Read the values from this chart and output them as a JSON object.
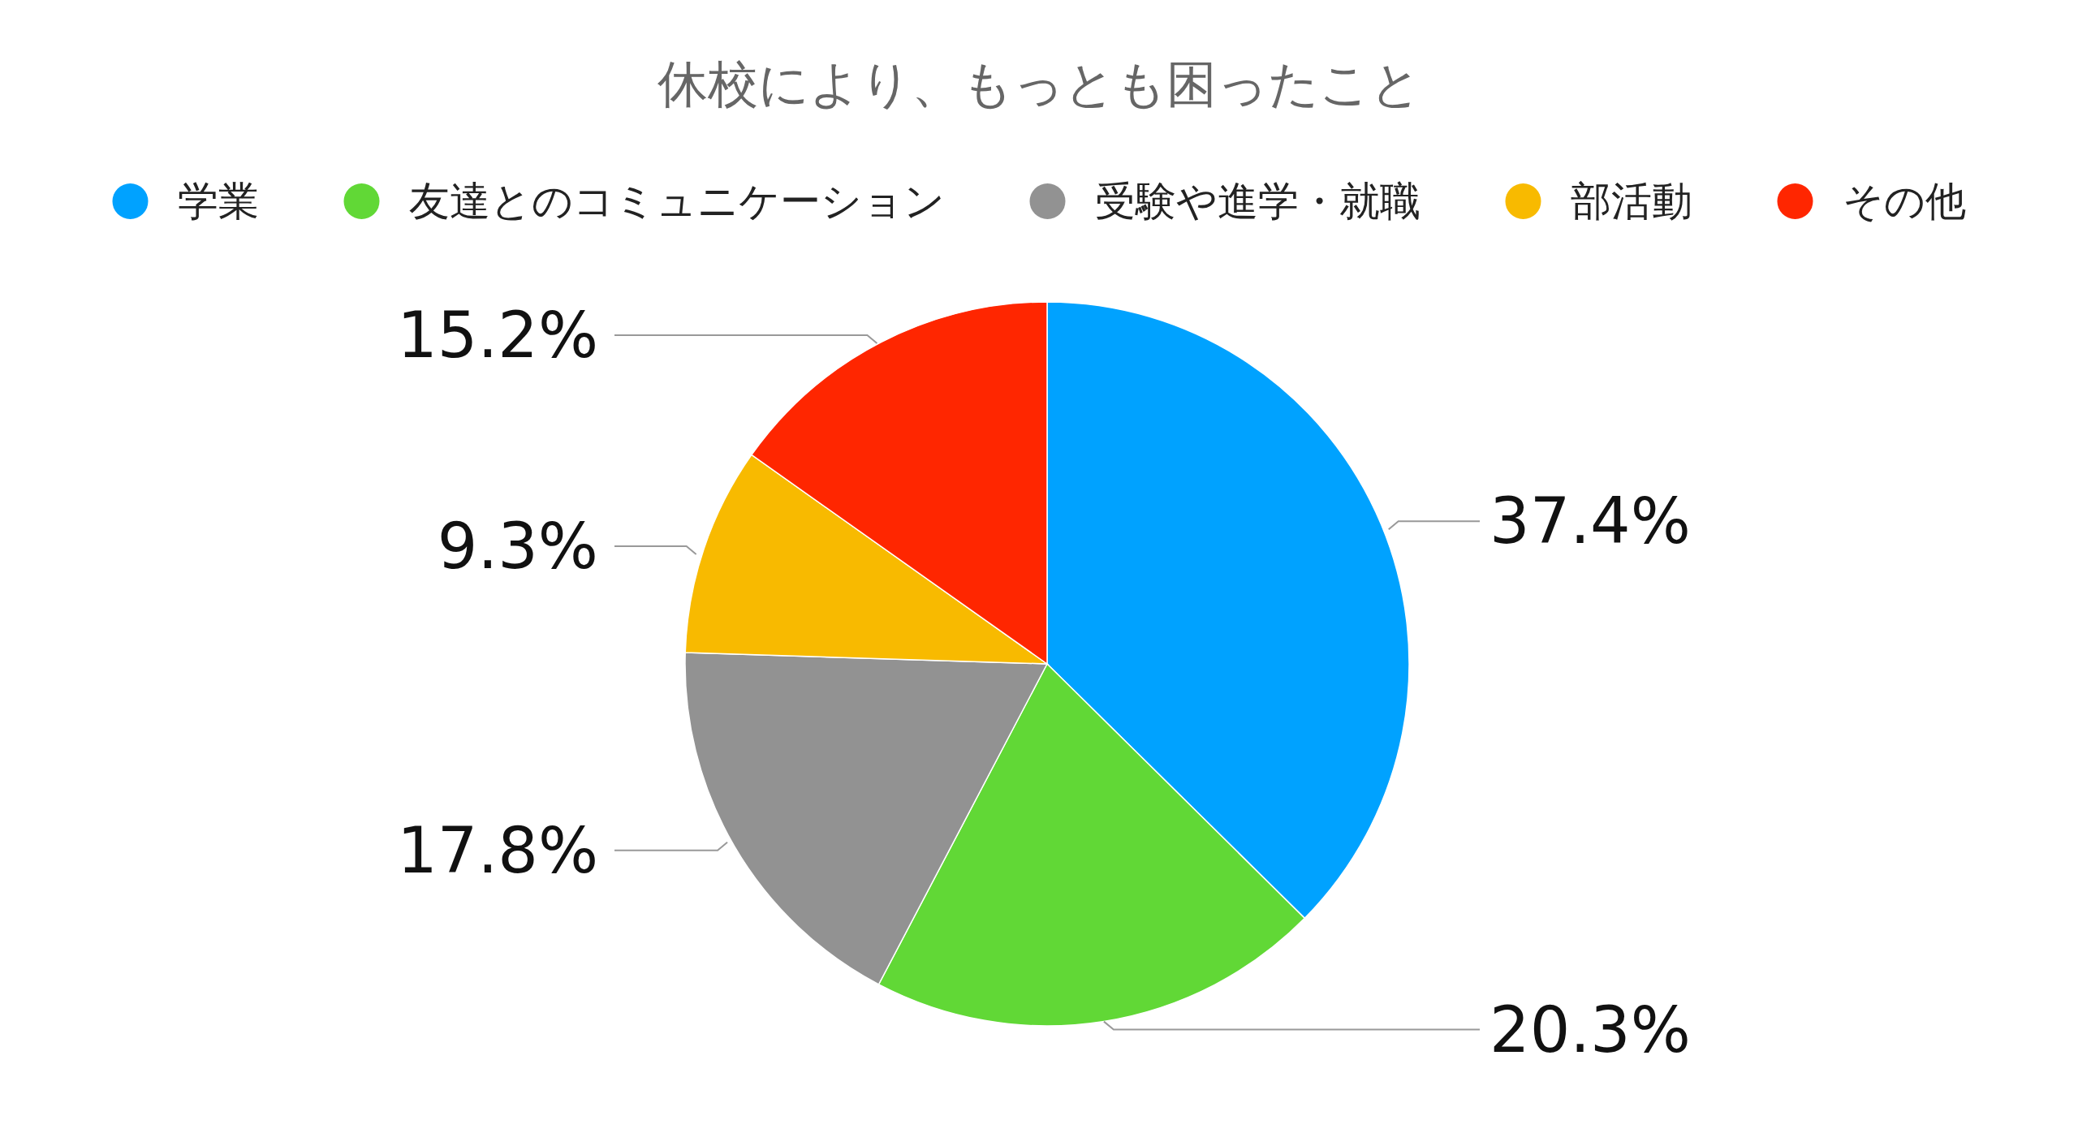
{
  "chart_data": {
    "type": "pie",
    "title": "休校により、もっとも困ったこと",
    "categories": [
      "学業",
      "友達とのコミュニケーション",
      "受験や進学・就職",
      "部活動",
      "その他"
    ],
    "values": [
      37.4,
      20.3,
      17.8,
      9.3,
      15.2
    ],
    "colors": [
      "#00a2ff",
      "#61d836",
      "#929292",
      "#f8ba00",
      "#ff2600"
    ],
    "value_labels": [
      "37.4%",
      "20.3%",
      "17.8%",
      "9.3%",
      "15.2%"
    ],
    "legend": "top"
  }
}
